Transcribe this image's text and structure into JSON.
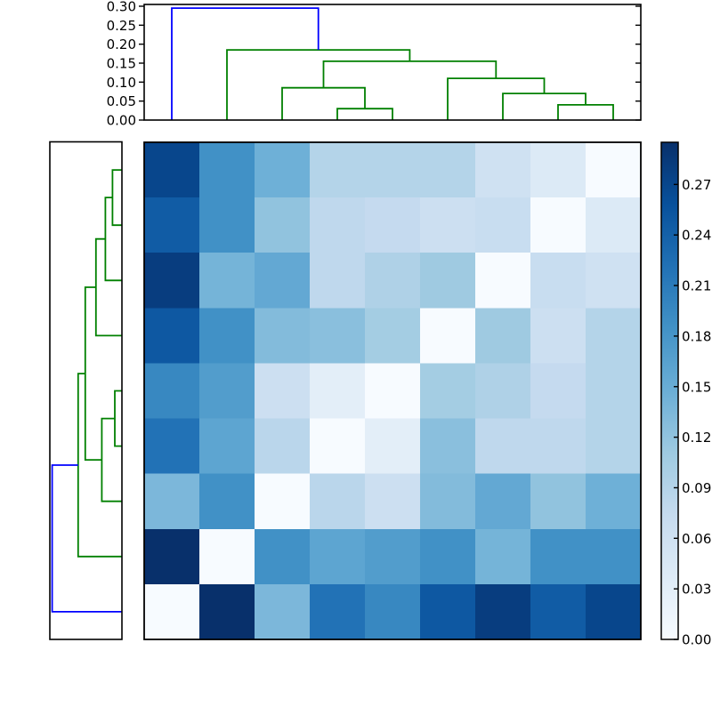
{
  "figure": {
    "description": "Hierarchically clustered distance matrix heatmap with dendrograms and colorbar"
  },
  "chart_data": {
    "type": "heatmap",
    "grid_size": 9,
    "matrix_rows_top_to_bottom": [
      [
        0.27,
        0.185,
        0.145,
        0.09,
        0.09,
        0.09,
        0.06,
        0.04,
        0.0
      ],
      [
        0.245,
        0.185,
        0.12,
        0.08,
        0.075,
        0.065,
        0.07,
        0.0,
        0.04
      ],
      [
        0.28,
        0.14,
        0.155,
        0.08,
        0.095,
        0.11,
        0.0,
        0.07,
        0.06
      ],
      [
        0.25,
        0.185,
        0.13,
        0.125,
        0.105,
        0.0,
        0.11,
        0.065,
        0.09
      ],
      [
        0.195,
        0.17,
        0.065,
        0.03,
        0.0,
        0.105,
        0.095,
        0.075,
        0.09
      ],
      [
        0.22,
        0.16,
        0.085,
        0.0,
        0.03,
        0.125,
        0.08,
        0.08,
        0.09
      ],
      [
        0.135,
        0.185,
        0.0,
        0.085,
        0.065,
        0.13,
        0.155,
        0.12,
        0.145
      ],
      [
        0.295,
        0.0,
        0.185,
        0.16,
        0.17,
        0.185,
        0.14,
        0.185,
        0.185
      ],
      [
        0.0,
        0.295,
        0.135,
        0.22,
        0.195,
        0.25,
        0.28,
        0.245,
        0.27
      ]
    ],
    "vmin": 0.0,
    "vmax": 0.295,
    "colormap": "Blues",
    "colormap_stops": [
      {
        "t": 0.0,
        "c": "#f7fbff"
      },
      {
        "t": 0.125,
        "c": "#deebf7"
      },
      {
        "t": 0.25,
        "c": "#c6dbef"
      },
      {
        "t": 0.375,
        "c": "#9ecae1"
      },
      {
        "t": 0.5,
        "c": "#6baed6"
      },
      {
        "t": 0.625,
        "c": "#4292c6"
      },
      {
        "t": 0.75,
        "c": "#2171b5"
      },
      {
        "t": 0.875,
        "c": "#08519c"
      },
      {
        "t": 1.0,
        "c": "#08306b"
      }
    ],
    "colorbar": {
      "tick_labels": [
        "0.00",
        "0.03",
        "0.06",
        "0.09",
        "0.12",
        "0.15",
        "0.18",
        "0.21",
        "0.24",
        "0.27"
      ],
      "tick_values": [
        0.0,
        0.03,
        0.06,
        0.09,
        0.12,
        0.15,
        0.18,
        0.21,
        0.24,
        0.27
      ]
    },
    "dendrogram": {
      "leaf_count": 9,
      "merges": [
        {
          "a": "L4",
          "b": "L5",
          "height": 0.03,
          "color": "green"
        },
        {
          "a": "L8",
          "b": "L9",
          "height": 0.04,
          "color": "green"
        },
        {
          "a": "L7",
          "b": "M1",
          "height": 0.07,
          "color": "green"
        },
        {
          "a": "L3",
          "b": "M0",
          "height": 0.085,
          "color": "green"
        },
        {
          "a": "L6",
          "b": "M2",
          "height": 0.11,
          "color": "green"
        },
        {
          "a": "M3",
          "b": "M4",
          "height": 0.155,
          "color": "green"
        },
        {
          "a": "L2",
          "b": "M5",
          "height": 0.185,
          "color": "green"
        },
        {
          "a": "L1",
          "b": "M6",
          "height": 0.295,
          "color": "blue"
        }
      ],
      "link_colors": {
        "green": "#008000",
        "blue": "#0000ff"
      },
      "top_axis_tick_labels": [
        "0.00",
        "0.05",
        "0.10",
        "0.15",
        "0.20",
        "0.25",
        "0.30"
      ],
      "top_axis_tick_values": [
        0.0,
        0.05,
        0.1,
        0.15,
        0.2,
        0.25,
        0.3
      ],
      "axis_max": 0.3047
    }
  }
}
